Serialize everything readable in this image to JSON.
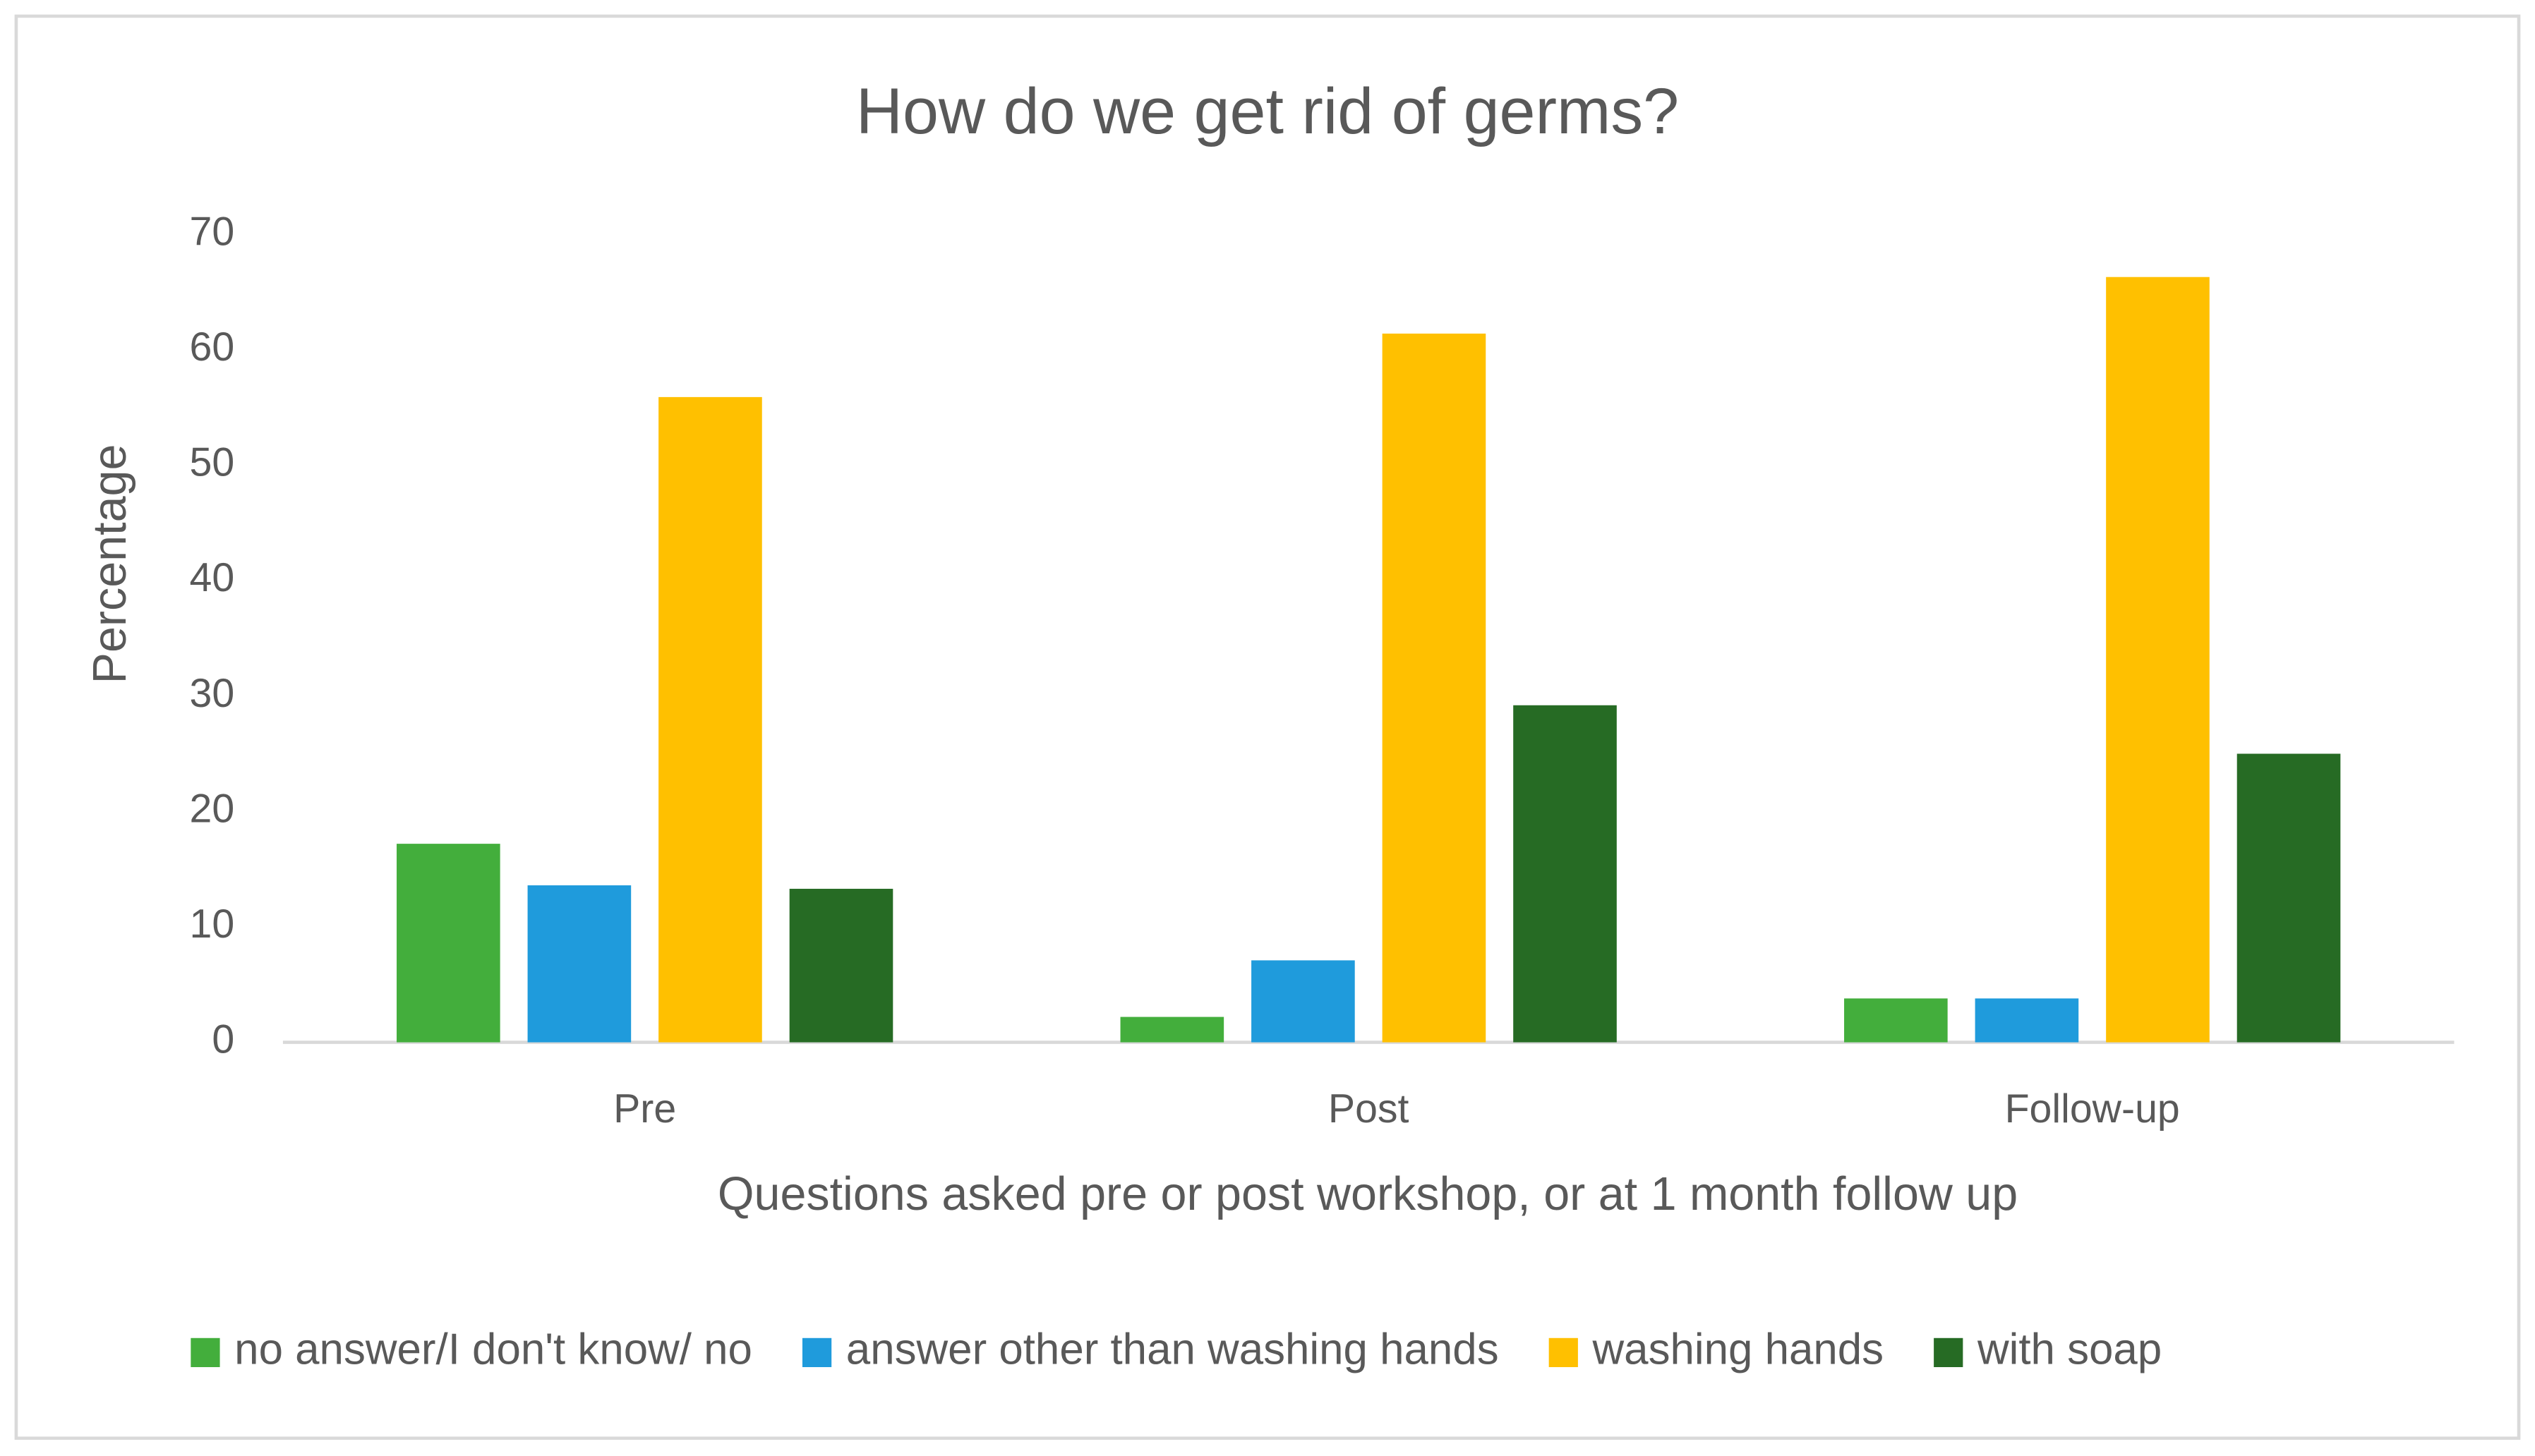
{
  "chart_data": {
    "type": "bar",
    "title": "How do we get rid of germs?",
    "x_label": "Questions asked pre or post workshop, or at 1 month follow up",
    "y_label": "Percentage",
    "categories": [
      "Pre",
      "Post",
      "Follow-up"
    ],
    "series": [
      {
        "name": "no answer/I don't know/ no",
        "color": "#43ae3c",
        "values": [
          17.2,
          2.2,
          3.8
        ]
      },
      {
        "name": "answer other than washing hands",
        "color": "#1f9bdc",
        "values": [
          13.6,
          7.1,
          3.8
        ]
      },
      {
        "name": "washing hands",
        "color": "#ffc000",
        "values": [
          55.9,
          61.4,
          66.3
        ]
      },
      {
        "name": "with soap",
        "color": "#266b24",
        "values": [
          13.3,
          29.2,
          25.0
        ]
      }
    ],
    "ylim": [
      0,
      70
    ],
    "yticks": [
      0,
      10,
      20,
      30,
      40,
      50,
      60,
      70
    ],
    "grid": false,
    "legend": "bottom"
  }
}
